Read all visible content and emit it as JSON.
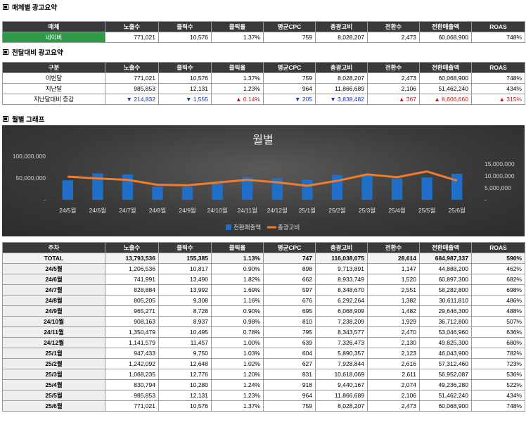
{
  "section1": {
    "title": "매체별 광고요약"
  },
  "section2": {
    "title": "전달대비 광고요약"
  },
  "section3": {
    "title": "월별 그래프"
  },
  "headers": [
    "노출수",
    "클릭수",
    "클릭율",
    "평균CPC",
    "총광고비",
    "전환수",
    "전환매출액",
    "ROAS"
  ],
  "media_table": {
    "first_header": "매체",
    "rows": [
      {
        "label": "네이버",
        "cells": [
          "771,021",
          "10,576",
          "1.37%",
          "759",
          "8,028,207",
          "2,473",
          "60,068,900",
          "748%"
        ]
      }
    ]
  },
  "compare_table": {
    "first_header": "구분",
    "rows": [
      {
        "label": "이번달",
        "cells": [
          "771,021",
          "10,576",
          "1.37%",
          "759",
          "8,028,207",
          "2,473",
          "60,068,900",
          "748%"
        ]
      },
      {
        "label": "지난달",
        "cells": [
          "985,853",
          "12,131",
          "1.23%",
          "964",
          "11,866,689",
          "2,106",
          "51,462,240",
          "434%"
        ]
      }
    ],
    "diff_row": {
      "label": "지난달대비 증감",
      "cells": [
        {
          "dir": "down",
          "value": "214,832"
        },
        {
          "dir": "down",
          "value": "1,555"
        },
        {
          "dir": "up",
          "value": "0.14%"
        },
        {
          "dir": "down",
          "value": "205"
        },
        {
          "dir": "down",
          "value": "3,838,482"
        },
        {
          "dir": "up",
          "value": "367"
        },
        {
          "dir": "up",
          "value": "8,606,660"
        },
        {
          "dir": "up",
          "value": "315%"
        }
      ]
    }
  },
  "chart_data": {
    "type": "bar",
    "title": "월별",
    "categories": [
      "24/5월",
      "24/6월",
      "24/7월",
      "24/8월",
      "24/9월",
      "24/10월",
      "24/11월",
      "24/12월",
      "25/1월",
      "25/2월",
      "25/3월",
      "25/4월",
      "25/5월",
      "25/6월"
    ],
    "series": [
      {
        "name": "전환매출액",
        "type": "bar",
        "axis": "left",
        "color": "#1f6fc8",
        "values": [
          44888200,
          60897300,
          58282800,
          30611810,
          29646300,
          36712800,
          53046960,
          49825300,
          46043900,
          57312460,
          56952087,
          49236280,
          51462240,
          60068900
        ]
      },
      {
        "name": "총광고비",
        "type": "line",
        "axis": "right",
        "color": "#f07c2a",
        "values": [
          9713891,
          8933749,
          8348670,
          6292264,
          6068909,
          7238209,
          8343577,
          7326473,
          5890357,
          7928844,
          10618069,
          9440167,
          11866689,
          8028207
        ]
      }
    ],
    "left_axis": {
      "min": 0,
      "max": 110000000,
      "ticks": [
        0,
        50000000,
        100000000
      ],
      "tick_labels": [
        "-",
        "50,000,000",
        "100,000,000"
      ]
    },
    "right_axis": {
      "min": 0,
      "max": 20000000,
      "ticks": [
        0,
        5000000,
        10000000,
        15000000
      ],
      "tick_labels": [
        "-",
        "5,000,000",
        "10,000,000",
        "15,000,000"
      ]
    },
    "legend_position": "bottom",
    "grid": false
  },
  "monthly_table": {
    "first_header": "주차",
    "total": {
      "label": "TOTAL",
      "cells": [
        "13,793,536",
        "155,385",
        "1.13%",
        "747",
        "116,038,075",
        "28,614",
        "684,987,337",
        "590%"
      ]
    },
    "rows": [
      {
        "label": "24/5월",
        "cells": [
          "1,206,536",
          "10,817",
          "0.90%",
          "898",
          "9,713,891",
          "1,147",
          "44,888,200",
          "462%"
        ]
      },
      {
        "label": "24/6월",
        "cells": [
          "741,991",
          "13,490",
          "1.82%",
          "662",
          "8,933,749",
          "1,520",
          "60,897,300",
          "682%"
        ]
      },
      {
        "label": "24/7월",
        "cells": [
          "828,884",
          "13,992",
          "1.69%",
          "597",
          "8,348,670",
          "2,551",
          "58,282,800",
          "698%"
        ]
      },
      {
        "label": "24/8월",
        "cells": [
          "805,205",
          "9,308",
          "1.16%",
          "676",
          "6,292,264",
          "1,382",
          "30,611,810",
          "486%"
        ]
      },
      {
        "label": "24/9월",
        "cells": [
          "965,271",
          "8,728",
          "0.90%",
          "695",
          "6,068,909",
          "1,482",
          "29,646,300",
          "488%"
        ]
      },
      {
        "label": "24/10월",
        "cells": [
          "908,163",
          "8,937",
          "0.98%",
          "810",
          "7,238,209",
          "1,929",
          "36,712,800",
          "507%"
        ]
      },
      {
        "label": "24/11월",
        "cells": [
          "1,350,479",
          "10,495",
          "0.78%",
          "795",
          "8,343,577",
          "2,470",
          "53,046,960",
          "636%"
        ]
      },
      {
        "label": "24/12월",
        "cells": [
          "1,141,579",
          "11,457",
          "1.00%",
          "639",
          "7,326,473",
          "2,130",
          "49,825,300",
          "680%"
        ]
      },
      {
        "label": "25/1월",
        "cells": [
          "947,433",
          "9,750",
          "1.03%",
          "604",
          "5,890,357",
          "2,123",
          "46,043,900",
          "782%"
        ]
      },
      {
        "label": "25/2월",
        "cells": [
          "1,242,092",
          "12,648",
          "1.02%",
          "627",
          "7,928,844",
          "2,616",
          "57,312,460",
          "723%"
        ]
      },
      {
        "label": "25/3월",
        "cells": [
          "1,068,235",
          "12,776",
          "1.20%",
          "831",
          "10,618,069",
          "2,611",
          "56,952,087",
          "536%"
        ]
      },
      {
        "label": "25/4월",
        "cells": [
          "830,794",
          "10,280",
          "1.24%",
          "918",
          "9,440,167",
          "2,074",
          "49,236,280",
          "522%"
        ]
      },
      {
        "label": "25/5월",
        "cells": [
          "985,853",
          "12,131",
          "1.23%",
          "964",
          "11,866,689",
          "2,106",
          "51,462,240",
          "434%"
        ]
      },
      {
        "label": "25/6월",
        "cells": [
          "771,021",
          "10,576",
          "1.37%",
          "759",
          "8,028,207",
          "2,473",
          "60,068,900",
          "748%"
        ]
      }
    ]
  }
}
